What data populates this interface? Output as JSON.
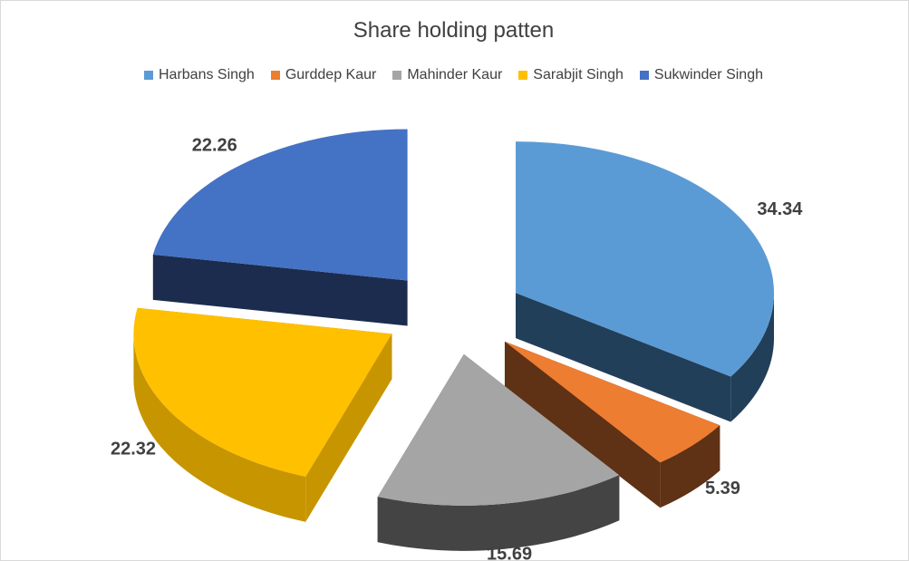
{
  "chart_data": {
    "type": "pie",
    "title": "Share holding patten",
    "legend_position": "top",
    "series": [
      {
        "name": "Harbans Singh",
        "value": 34.34,
        "label": "34.34",
        "color": "#5B9BD5",
        "side": "#223F5A"
      },
      {
        "name": "Gurddep Kaur",
        "value": 5.39,
        "label": "5.39",
        "color": "#ED7D31",
        "side": "#5F3115"
      },
      {
        "name": "Mahinder Kaur",
        "value": 15.69,
        "label": "15.69",
        "color": "#A5A5A5",
        "side": "#444444"
      },
      {
        "name": "Sarabjit Singh",
        "value": 22.32,
        "label": "22.32",
        "color": "#FFC000",
        "side": "#C79500"
      },
      {
        "name": "Sukwinder Singh",
        "value": 22.26,
        "label": "22.26",
        "color": "#4472C4",
        "side": "#1B2C4E"
      }
    ]
  }
}
